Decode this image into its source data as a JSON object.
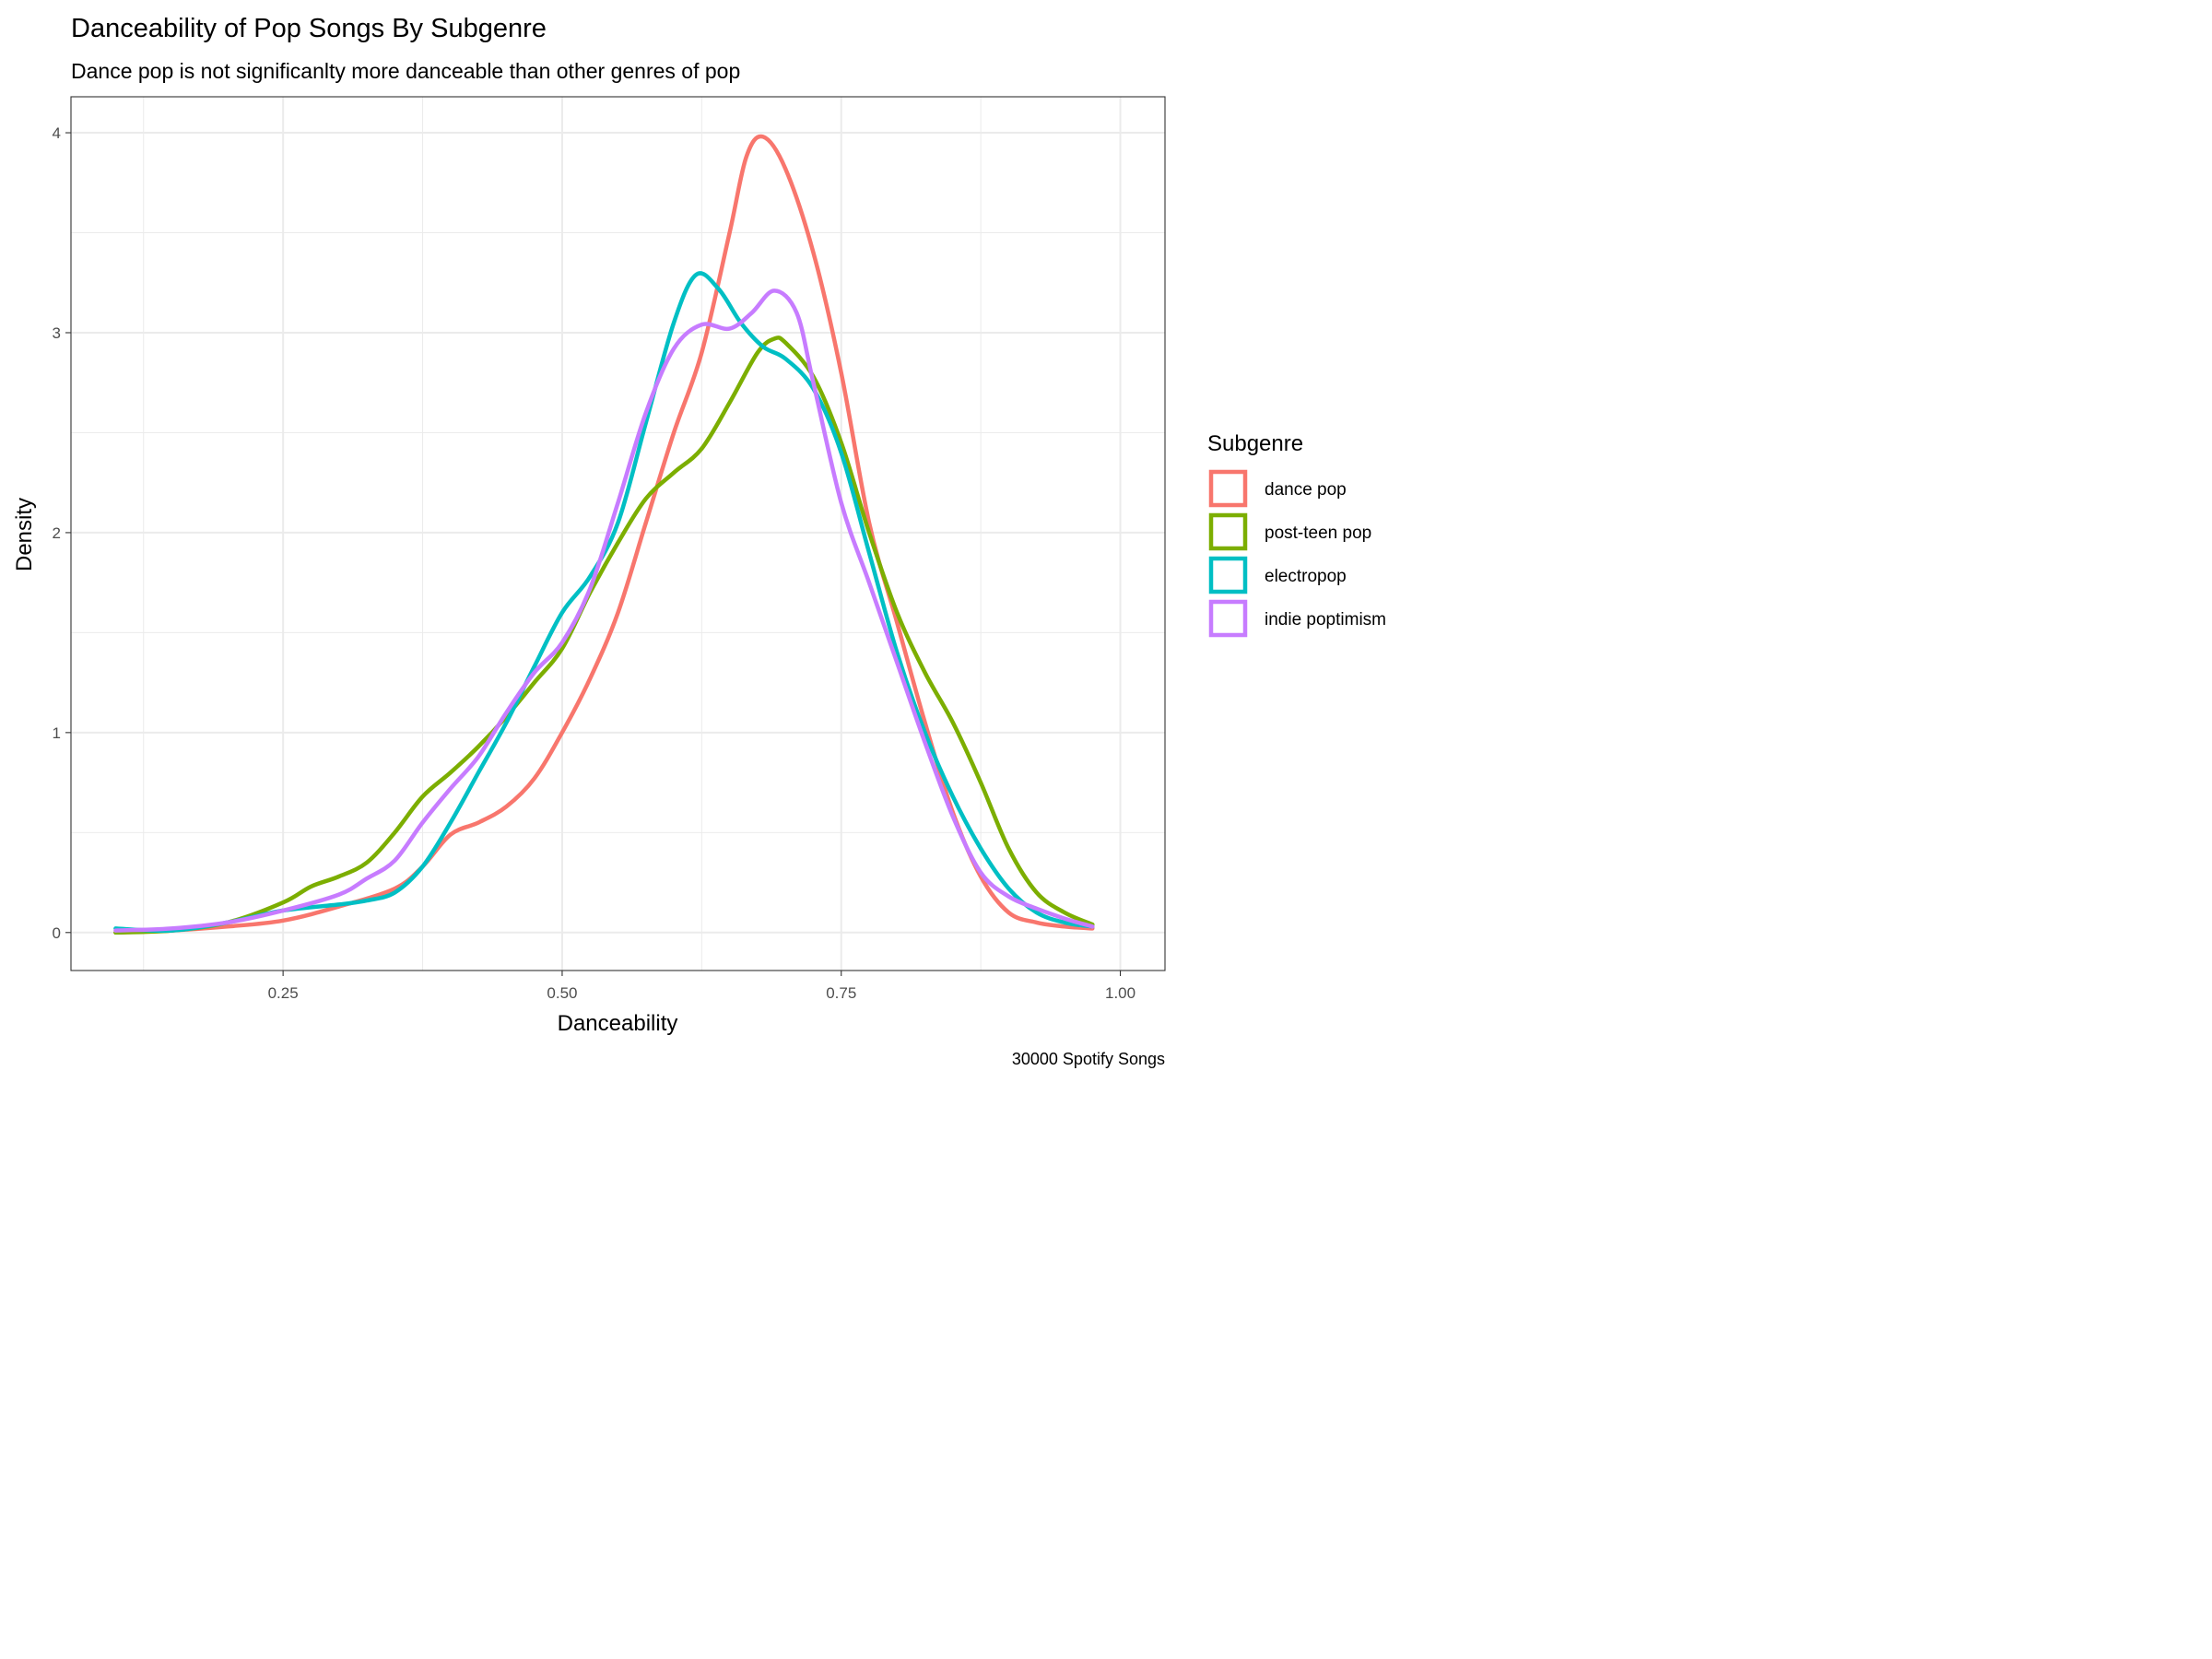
{
  "chart_data": {
    "type": "line",
    "subtype": "density",
    "title": "Danceability of Pop Songs By Subgenre",
    "subtitle": "Dance pop is not significanlty more danceable than other genres of pop",
    "xlabel": "Danceability",
    "ylabel": "Density",
    "caption": "30000 Spotify Songs",
    "xlim": [
      0.06,
      1.04
    ],
    "ylim": [
      -0.19,
      4.18
    ],
    "x_ticks": [
      0.25,
      0.5,
      0.75,
      1.0
    ],
    "x_tick_labels": [
      "0.25",
      "0.50",
      "0.75",
      "1.00"
    ],
    "y_ticks": [
      0,
      1,
      2,
      3,
      4
    ],
    "y_tick_labels": [
      "0",
      "1",
      "2",
      "3",
      "4"
    ],
    "grid": true,
    "legend": {
      "title": "Subgenre",
      "position": "right"
    },
    "series": [
      {
        "name": "dance pop",
        "color": "#F8766D",
        "points": [
          [
            0.1,
            0.0
          ],
          [
            0.15,
            0.01
          ],
          [
            0.2,
            0.03
          ],
          [
            0.25,
            0.06
          ],
          [
            0.3,
            0.13
          ],
          [
            0.35,
            0.22
          ],
          [
            0.375,
            0.33
          ],
          [
            0.4,
            0.49
          ],
          [
            0.425,
            0.55
          ],
          [
            0.45,
            0.63
          ],
          [
            0.475,
            0.77
          ],
          [
            0.5,
            1.0
          ],
          [
            0.525,
            1.27
          ],
          [
            0.55,
            1.6
          ],
          [
            0.575,
            2.05
          ],
          [
            0.6,
            2.5
          ],
          [
            0.625,
            2.9
          ],
          [
            0.65,
            3.5
          ],
          [
            0.665,
            3.88
          ],
          [
            0.68,
            3.98
          ],
          [
            0.7,
            3.82
          ],
          [
            0.725,
            3.4
          ],
          [
            0.75,
            2.8
          ],
          [
            0.775,
            2.05
          ],
          [
            0.8,
            1.55
          ],
          [
            0.825,
            1.05
          ],
          [
            0.85,
            0.6
          ],
          [
            0.875,
            0.28
          ],
          [
            0.9,
            0.1
          ],
          [
            0.925,
            0.05
          ],
          [
            0.95,
            0.03
          ],
          [
            0.975,
            0.02
          ]
        ]
      },
      {
        "name": "post-teen pop",
        "color": "#7CAE00",
        "points": [
          [
            0.1,
            0.0
          ],
          [
            0.15,
            0.01
          ],
          [
            0.2,
            0.05
          ],
          [
            0.25,
            0.15
          ],
          [
            0.275,
            0.23
          ],
          [
            0.3,
            0.28
          ],
          [
            0.325,
            0.35
          ],
          [
            0.35,
            0.5
          ],
          [
            0.375,
            0.68
          ],
          [
            0.4,
            0.8
          ],
          [
            0.425,
            0.93
          ],
          [
            0.45,
            1.08
          ],
          [
            0.475,
            1.25
          ],
          [
            0.5,
            1.42
          ],
          [
            0.525,
            1.7
          ],
          [
            0.55,
            1.95
          ],
          [
            0.575,
            2.17
          ],
          [
            0.6,
            2.3
          ],
          [
            0.625,
            2.42
          ],
          [
            0.65,
            2.65
          ],
          [
            0.675,
            2.9
          ],
          [
            0.69,
            2.97
          ],
          [
            0.7,
            2.95
          ],
          [
            0.725,
            2.78
          ],
          [
            0.75,
            2.45
          ],
          [
            0.775,
            2.0
          ],
          [
            0.8,
            1.6
          ],
          [
            0.825,
            1.3
          ],
          [
            0.85,
            1.05
          ],
          [
            0.875,
            0.75
          ],
          [
            0.9,
            0.42
          ],
          [
            0.925,
            0.2
          ],
          [
            0.95,
            0.1
          ],
          [
            0.975,
            0.04
          ]
        ]
      },
      {
        "name": "electropop",
        "color": "#00BFC4",
        "points": [
          [
            0.1,
            0.02
          ],
          [
            0.15,
            0.01
          ],
          [
            0.2,
            0.05
          ],
          [
            0.25,
            0.11
          ],
          [
            0.3,
            0.14
          ],
          [
            0.325,
            0.16
          ],
          [
            0.35,
            0.2
          ],
          [
            0.375,
            0.33
          ],
          [
            0.4,
            0.55
          ],
          [
            0.425,
            0.8
          ],
          [
            0.45,
            1.05
          ],
          [
            0.475,
            1.33
          ],
          [
            0.5,
            1.6
          ],
          [
            0.525,
            1.78
          ],
          [
            0.55,
            2.05
          ],
          [
            0.575,
            2.55
          ],
          [
            0.6,
            3.05
          ],
          [
            0.62,
            3.29
          ],
          [
            0.64,
            3.22
          ],
          [
            0.66,
            3.05
          ],
          [
            0.68,
            2.93
          ],
          [
            0.7,
            2.87
          ],
          [
            0.725,
            2.72
          ],
          [
            0.75,
            2.4
          ],
          [
            0.775,
            1.9
          ],
          [
            0.8,
            1.4
          ],
          [
            0.825,
            1.0
          ],
          [
            0.85,
            0.68
          ],
          [
            0.875,
            0.42
          ],
          [
            0.9,
            0.22
          ],
          [
            0.925,
            0.1
          ],
          [
            0.95,
            0.05
          ],
          [
            0.975,
            0.03
          ]
        ]
      },
      {
        "name": "indie poptimism",
        "color": "#C77CFF",
        "points": [
          [
            0.1,
            0.01
          ],
          [
            0.15,
            0.02
          ],
          [
            0.2,
            0.05
          ],
          [
            0.25,
            0.11
          ],
          [
            0.3,
            0.19
          ],
          [
            0.325,
            0.27
          ],
          [
            0.35,
            0.36
          ],
          [
            0.375,
            0.55
          ],
          [
            0.4,
            0.72
          ],
          [
            0.425,
            0.88
          ],
          [
            0.45,
            1.1
          ],
          [
            0.475,
            1.3
          ],
          [
            0.5,
            1.45
          ],
          [
            0.525,
            1.72
          ],
          [
            0.55,
            2.15
          ],
          [
            0.575,
            2.6
          ],
          [
            0.6,
            2.92
          ],
          [
            0.625,
            3.04
          ],
          [
            0.65,
            3.02
          ],
          [
            0.67,
            3.1
          ],
          [
            0.69,
            3.21
          ],
          [
            0.71,
            3.1
          ],
          [
            0.725,
            2.75
          ],
          [
            0.75,
            2.15
          ],
          [
            0.775,
            1.75
          ],
          [
            0.8,
            1.35
          ],
          [
            0.825,
            0.95
          ],
          [
            0.85,
            0.58
          ],
          [
            0.875,
            0.3
          ],
          [
            0.9,
            0.18
          ],
          [
            0.925,
            0.12
          ],
          [
            0.95,
            0.07
          ],
          [
            0.975,
            0.03
          ]
        ]
      }
    ]
  }
}
